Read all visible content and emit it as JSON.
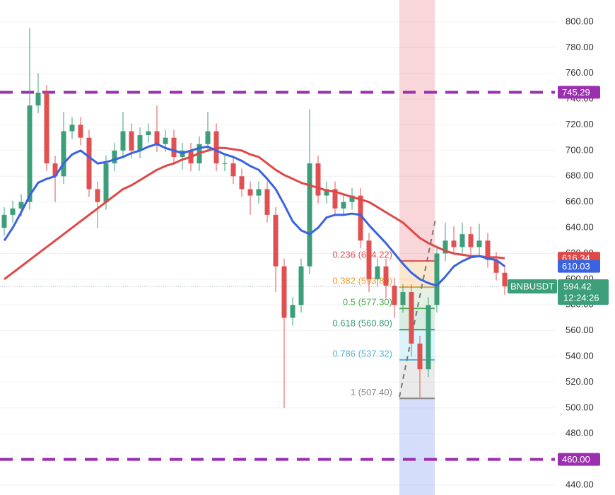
{
  "chart_data": {
    "type": "candlestick",
    "symbol": "BNBUSDT",
    "time_label": "12:24:26",
    "up_color": "#3d9e7a",
    "down_color": "#e05050",
    "ylim": [
      432.3,
      817.0
    ],
    "yticks": [
      {
        "value": 440,
        "label": "440.00"
      },
      {
        "value": 460,
        "label": "460.00"
      },
      {
        "value": 480,
        "label": "480.00"
      },
      {
        "value": 500,
        "label": "500.00"
      },
      {
        "value": 520,
        "label": "520.00"
      },
      {
        "value": 540,
        "label": "540.00"
      },
      {
        "value": 560,
        "label": "560.00"
      },
      {
        "value": 580,
        "label": "580.00"
      },
      {
        "value": 600,
        "label": "600.00"
      },
      {
        "value": 620,
        "label": "620.00"
      },
      {
        "value": 640,
        "label": "640.00"
      },
      {
        "value": 660,
        "label": "660.00"
      },
      {
        "value": 680,
        "label": "680.00"
      },
      {
        "value": 700,
        "label": "700.00"
      },
      {
        "value": 720,
        "label": "720.00"
      },
      {
        "value": 740,
        "label": "740.00"
      },
      {
        "value": 760,
        "label": "760.00"
      },
      {
        "value": 780,
        "label": "780.00"
      },
      {
        "value": 800,
        "label": "800.00"
      }
    ],
    "open": [
      640,
      650,
      655,
      660,
      735,
      745,
      690,
      680,
      715,
      720,
      710,
      670,
      660,
      690,
      700,
      715,
      700,
      712,
      715,
      705,
      710,
      695,
      700,
      690,
      705,
      715,
      690,
      690,
      680,
      670,
      665,
      670,
      650,
      610,
      570,
      580,
      610,
      690,
      665,
      670,
      655,
      660,
      665,
      630,
      600,
      610,
      595,
      580,
      590,
      550,
      530,
      580,
      620,
      630,
      625,
      635,
      625,
      630,
      615,
      605
    ],
    "high": [
      656,
      661,
      666,
      795,
      760,
      751,
      696,
      730,
      726,
      726,
      716,
      676,
      696,
      706,
      730,
      721,
      718,
      721,
      735,
      716,
      716,
      706,
      706,
      711,
      730,
      721,
      696,
      696,
      686,
      676,
      676,
      676,
      656,
      616,
      586,
      616,
      732,
      696,
      676,
      676,
      666,
      671,
      671,
      636,
      616,
      616,
      601,
      596,
      596,
      556,
      586,
      626,
      644,
      641,
      644,
      641,
      643,
      636,
      621,
      611
    ],
    "low": [
      634,
      644,
      649,
      654,
      729,
      684,
      660,
      674,
      709,
      704,
      664,
      640,
      654,
      684,
      694,
      694,
      694,
      706,
      699,
      699,
      689,
      685,
      684,
      684,
      699,
      684,
      684,
      674,
      664,
      650,
      659,
      644,
      590,
      500,
      564,
      574,
      604,
      659,
      659,
      649,
      649,
      654,
      624,
      590,
      594,
      585,
      570,
      574,
      540,
      508,
      524,
      574,
      614,
      619,
      619,
      619,
      619,
      609,
      599,
      588
    ],
    "close": [
      650,
      655,
      660,
      735,
      745,
      690,
      680,
      715,
      720,
      710,
      670,
      660,
      690,
      700,
      715,
      700,
      712,
      715,
      705,
      710,
      695,
      700,
      690,
      705,
      715,
      690,
      690,
      680,
      670,
      665,
      670,
      650,
      610,
      570,
      580,
      610,
      690,
      665,
      670,
      655,
      660,
      665,
      630,
      600,
      610,
      595,
      580,
      590,
      550,
      530,
      580,
      620,
      630,
      625,
      635,
      625,
      630,
      615,
      605,
      594.42
    ],
    "moving_averages": [
      {
        "color": "#e04848",
        "values": [
          600,
          605,
          610,
          615,
          620,
          625,
          630,
          635,
          640,
          645,
          650,
          655,
          660,
          665,
          670,
          673,
          677,
          681,
          685,
          688,
          690,
          693,
          695,
          698,
          700,
          702,
          702,
          701,
          700,
          697,
          695,
          690,
          685,
          681,
          678,
          675,
          673,
          671,
          669,
          668,
          666,
          664,
          662,
          660,
          656,
          652,
          648,
          644,
          638,
          632,
          628,
          625,
          622,
          620,
          619,
          618,
          618,
          617,
          617,
          616.34
        ]
      },
      {
        "color": "#3a63e0",
        "values": [
          630,
          640,
          652,
          665,
          675,
          678,
          680,
          690,
          697,
          700,
          695,
          690,
          691,
          693,
          695,
          698,
          700,
          703,
          705,
          702,
          700,
          698,
          700,
          702,
          703,
          700,
          697,
          695,
          692,
          688,
          685,
          678,
          670,
          658,
          645,
          638,
          635,
          640,
          648,
          650,
          650,
          651,
          650,
          642,
          635,
          628,
          620,
          612,
          605,
          600,
          597,
          595,
          602,
          610,
          614,
          617,
          618,
          616,
          615,
          610.03
        ]
      }
    ],
    "hlines": {
      "color": "#9c2fb0",
      "levels": [
        {
          "value": 745.29,
          "label": "745.29"
        },
        {
          "value": 460,
          "label": "460.00"
        }
      ]
    },
    "fib_levels": [
      {
        "value": 614.22,
        "label": "0.236 (614.22)",
        "color": "#e05050",
        "fill": "rgba(240,160,60,0.25)"
      },
      {
        "value": 593.8,
        "label": "0.382 (593.80)",
        "color": "#f0a030",
        "fill": "rgba(120,170,110,0.18)"
      },
      {
        "value": 577.3,
        "label": "0.5 (577.30)",
        "color": "#4caf50",
        "fill": "rgba(60,160,110,0.2)"
      },
      {
        "value": 560.8,
        "label": "0.618 (560.80)",
        "color": "#3d9e7a",
        "fill": "rgba(90,200,230,0.22)"
      },
      {
        "value": 537.32,
        "label": "0.786 (537.32)",
        "color": "#56b0d8",
        "fill": "rgba(150,150,150,0.2)"
      },
      {
        "value": 507.4,
        "label": "1 (507.40)",
        "color": "#888888",
        "fill": null
      }
    ]
  }
}
